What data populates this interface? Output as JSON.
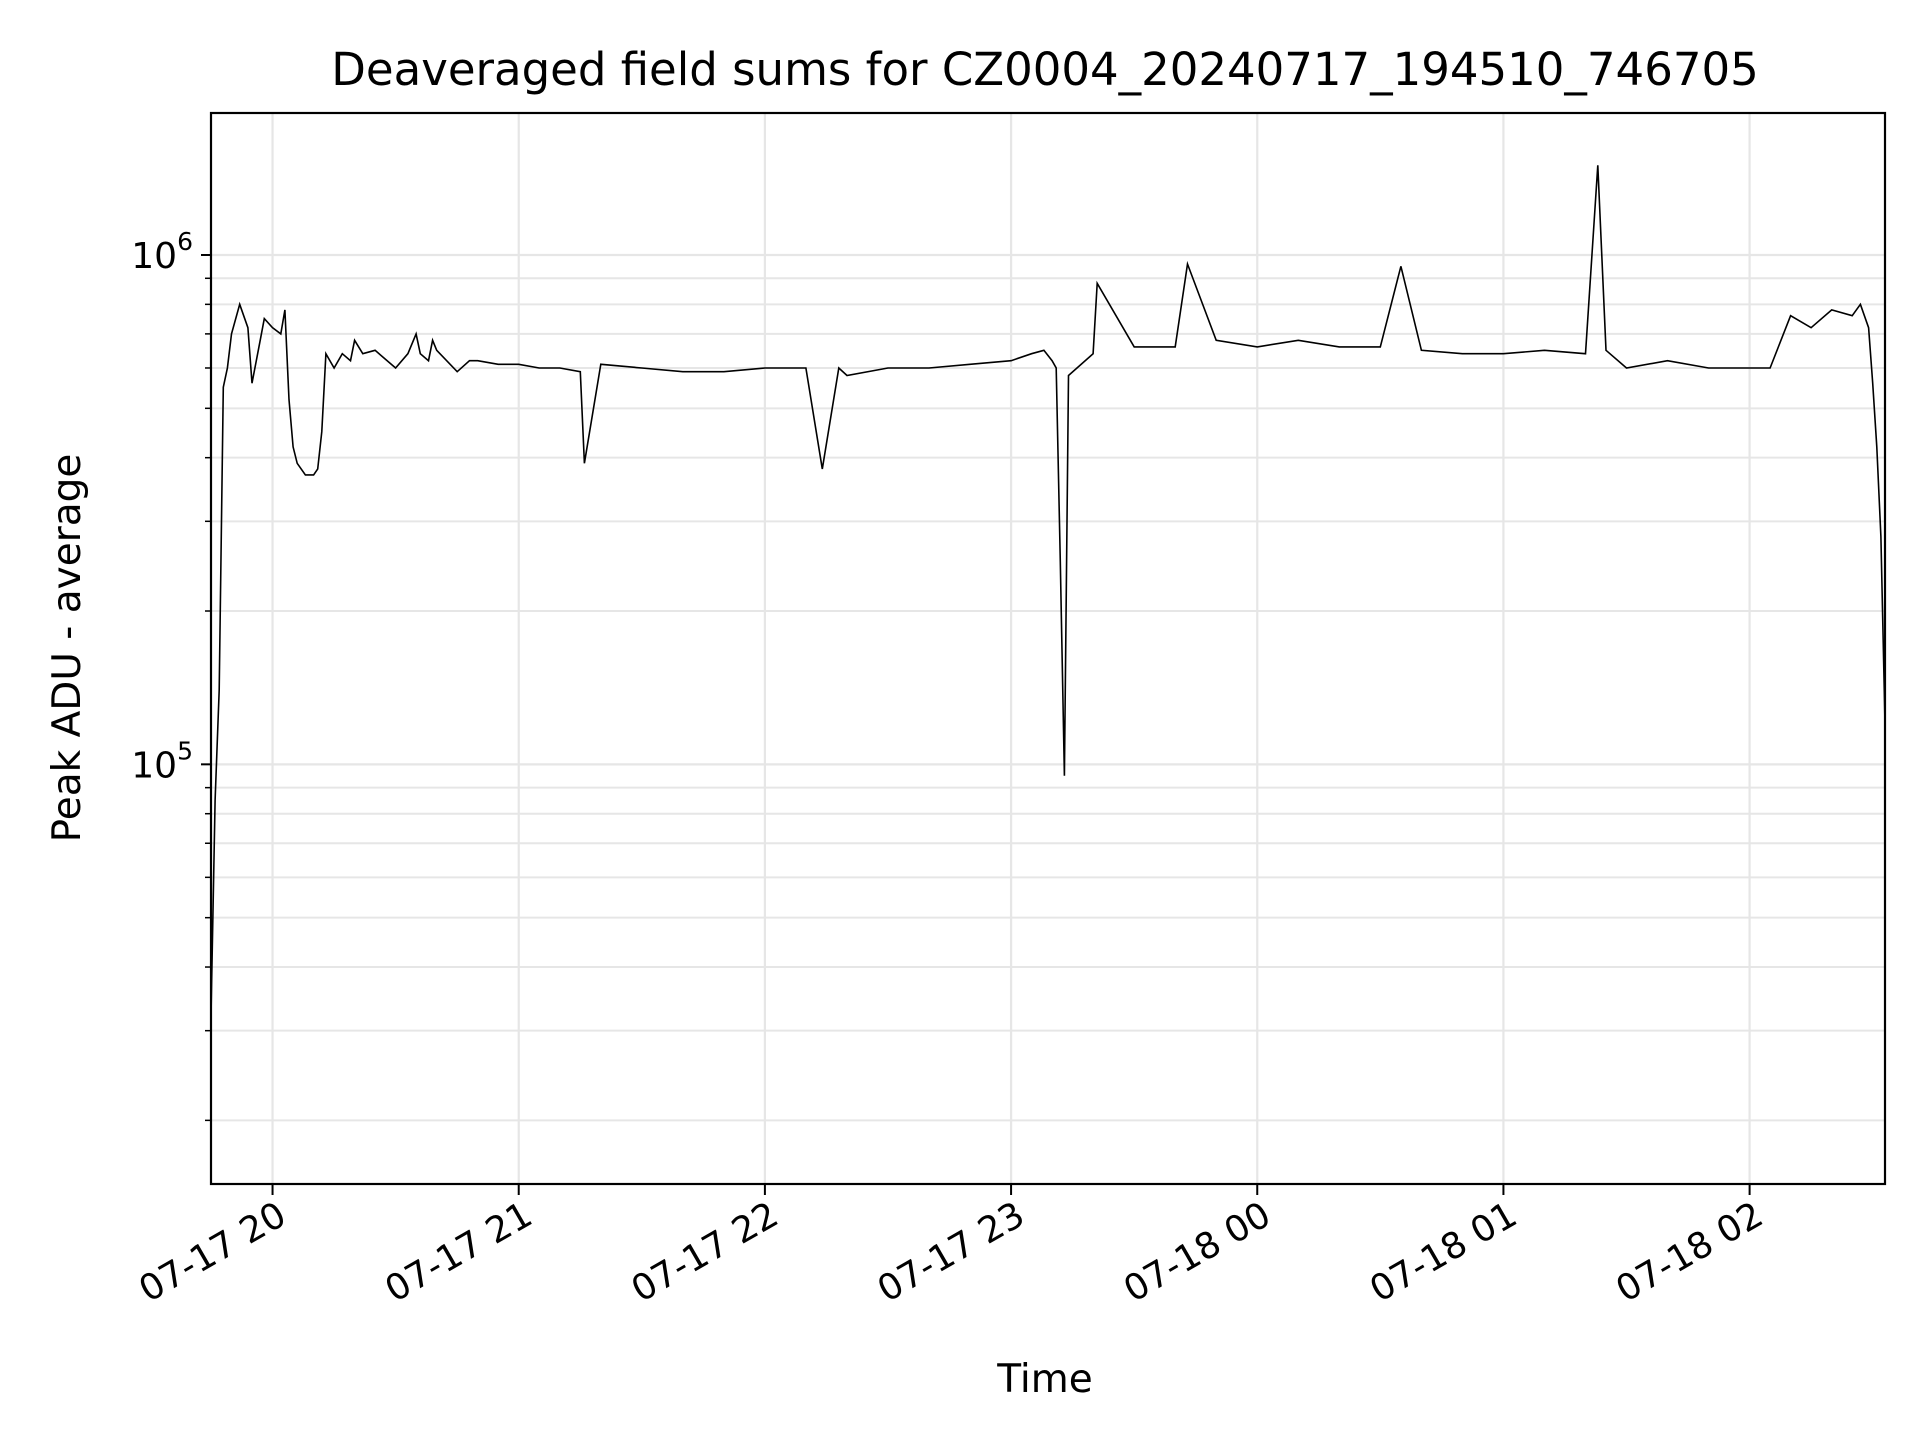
{
  "chart_data": {
    "type": "line",
    "title": "Deaveraged field sums for CZ0004_20240717_194510_746705",
    "xlabel": "Time",
    "ylabel": "Peak ADU - average",
    "yscale": "log",
    "grid": true,
    "x_is_time": true,
    "xlim": [
      "2024-07-17 19:45",
      "2024-07-18 02:33"
    ],
    "ylim": [
      15000,
      1900000
    ],
    "x_ticks": [
      {
        "t": "2024-07-17 20:00",
        "label": "07-17 20"
      },
      {
        "t": "2024-07-17 21:00",
        "label": "07-17 21"
      },
      {
        "t": "2024-07-17 22:00",
        "label": "07-17 22"
      },
      {
        "t": "2024-07-17 23:00",
        "label": "07-17 23"
      },
      {
        "t": "2024-07-18 00:00",
        "label": "07-18 00"
      },
      {
        "t": "2024-07-18 01:00",
        "label": "07-18 01"
      },
      {
        "t": "2024-07-18 02:00",
        "label": "07-18 02"
      }
    ],
    "y_ticks": [
      {
        "value": 100000,
        "base": "10",
        "exp": "5"
      },
      {
        "value": 1000000,
        "base": "10",
        "exp": "6"
      }
    ],
    "line_color": "#000000",
    "series": [
      {
        "x": [
          "2024-07-17 19:45",
          "2024-07-17 19:46",
          "2024-07-17 19:47",
          "2024-07-17 19:48",
          "2024-07-17 19:49",
          "2024-07-17 19:50",
          "2024-07-17 19:52",
          "2024-07-17 19:54",
          "2024-07-17 19:55",
          "2024-07-17 19:57",
          "2024-07-17 19:58",
          "2024-07-17 20:00",
          "2024-07-17 20:02",
          "2024-07-17 20:03",
          "2024-07-17 20:04",
          "2024-07-17 20:05",
          "2024-07-17 20:06",
          "2024-07-17 20:08",
          "2024-07-17 20:10",
          "2024-07-17 20:11",
          "2024-07-17 20:12",
          "2024-07-17 20:13",
          "2024-07-17 20:15",
          "2024-07-17 20:17",
          "2024-07-17 20:19",
          "2024-07-17 20:20",
          "2024-07-17 20:22",
          "2024-07-17 20:25",
          "2024-07-17 20:30",
          "2024-07-17 20:33",
          "2024-07-17 20:35",
          "2024-07-17 20:36",
          "2024-07-17 20:38",
          "2024-07-17 20:39",
          "2024-07-17 20:40",
          "2024-07-17 20:45",
          "2024-07-17 20:48",
          "2024-07-17 20:50",
          "2024-07-17 20:55",
          "2024-07-17 21:00",
          "2024-07-17 21:05",
          "2024-07-17 21:10",
          "2024-07-17 21:15",
          "2024-07-17 21:16",
          "2024-07-17 21:20",
          "2024-07-17 21:30",
          "2024-07-17 21:40",
          "2024-07-17 21:50",
          "2024-07-17 22:00",
          "2024-07-17 22:10",
          "2024-07-17 22:14",
          "2024-07-17 22:18",
          "2024-07-17 22:20",
          "2024-07-17 22:30",
          "2024-07-17 22:40",
          "2024-07-17 22:50",
          "2024-07-17 23:00",
          "2024-07-17 23:05",
          "2024-07-17 23:08",
          "2024-07-17 23:10",
          "2024-07-17 23:11",
          "2024-07-17 23:12",
          "2024-07-17 23:13",
          "2024-07-17 23:14",
          "2024-07-17 23:20",
          "2024-07-17 23:21",
          "2024-07-17 23:30",
          "2024-07-17 23:40",
          "2024-07-17 23:43",
          "2024-07-17 23:50",
          "2024-07-18 00:00",
          "2024-07-18 00:10",
          "2024-07-18 00:20",
          "2024-07-18 00:30",
          "2024-07-18 00:35",
          "2024-07-18 00:40",
          "2024-07-18 00:50",
          "2024-07-18 01:00",
          "2024-07-18 01:10",
          "2024-07-18 01:20",
          "2024-07-18 01:23",
          "2024-07-18 01:25",
          "2024-07-18 01:30",
          "2024-07-18 01:40",
          "2024-07-18 01:50",
          "2024-07-18 02:00",
          "2024-07-18 02:05",
          "2024-07-18 02:10",
          "2024-07-18 02:15",
          "2024-07-18 02:20",
          "2024-07-18 02:25",
          "2024-07-18 02:27",
          "2024-07-18 02:29",
          "2024-07-18 02:30",
          "2024-07-18 02:31",
          "2024-07-18 02:32",
          "2024-07-18 02:33"
        ],
        "y": [
          32000,
          85000,
          140000,
          550000,
          600000,
          700000,
          800000,
          720000,
          560000,
          680000,
          750000,
          720000,
          700000,
          780000,
          520000,
          420000,
          390000,
          370000,
          370000,
          380000,
          450000,
          640000,
          600000,
          640000,
          620000,
          680000,
          640000,
          650000,
          600000,
          640000,
          700000,
          640000,
          620000,
          680000,
          650000,
          590000,
          620000,
          620000,
          610000,
          610000,
          600000,
          600000,
          590000,
          390000,
          610000,
          600000,
          590000,
          590000,
          600000,
          600000,
          380000,
          600000,
          580000,
          600000,
          600000,
          610000,
          620000,
          640000,
          650000,
          620000,
          600000,
          250000,
          95000,
          580000,
          640000,
          880000,
          660000,
          660000,
          960000,
          680000,
          660000,
          680000,
          660000,
          660000,
          950000,
          650000,
          640000,
          640000,
          650000,
          640000,
          1500000,
          650000,
          600000,
          620000,
          600000,
          600000,
          600000,
          760000,
          720000,
          780000,
          760000,
          800000,
          720000,
          560000,
          420000,
          280000,
          120000
        ]
      }
    ]
  }
}
